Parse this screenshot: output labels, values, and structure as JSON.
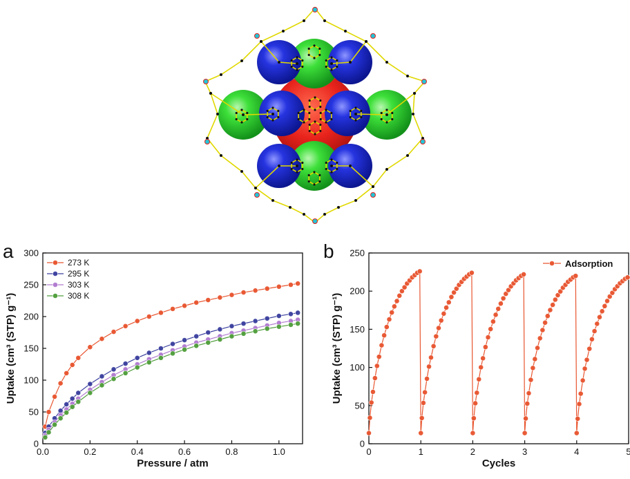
{
  "figure": {
    "panel_a_letter": "a",
    "panel_b_letter": "b",
    "structure_colors": {
      "red": "#e8231c",
      "green": "#2fd62f",
      "blue": "#1d2bd6",
      "framework": "#e0d800",
      "atom": "#111111",
      "metal": "#24c4d8"
    }
  },
  "chart_data": [
    {
      "type": "line",
      "panel": "a",
      "xlabel": "Pressure / atm",
      "ylabel": "Uptake (cm³ (STP) g⁻¹)",
      "xlim": [
        0.0,
        1.1
      ],
      "ylim": [
        0,
        300
      ],
      "xticks": [
        0.0,
        0.2,
        0.4,
        0.6,
        0.8,
        1.0
      ],
      "yticks": [
        0,
        50,
        100,
        150,
        200,
        250,
        300
      ],
      "legend_position": "top-left",
      "grid": false,
      "series": [
        {
          "name": "273 K",
          "color": "#e8542e",
          "x": [
            0.01,
            0.025,
            0.05,
            0.075,
            0.1,
            0.125,
            0.15,
            0.2,
            0.25,
            0.3,
            0.35,
            0.4,
            0.45,
            0.5,
            0.55,
            0.6,
            0.65,
            0.7,
            0.75,
            0.8,
            0.85,
            0.9,
            0.95,
            1.0,
            1.05,
            1.08
          ],
          "y": [
            27,
            50,
            74,
            95,
            111,
            124,
            135,
            152,
            165,
            176,
            185,
            193,
            200,
            206,
            212,
            217,
            222,
            226,
            230,
            234,
            238,
            241,
            244,
            247,
            250,
            252
          ]
        },
        {
          "name": "295 K",
          "color": "#3a3f9e",
          "x": [
            0.01,
            0.025,
            0.05,
            0.075,
            0.1,
            0.125,
            0.15,
            0.2,
            0.25,
            0.3,
            0.35,
            0.4,
            0.45,
            0.5,
            0.55,
            0.6,
            0.65,
            0.7,
            0.75,
            0.8,
            0.85,
            0.9,
            0.95,
            1.0,
            1.05,
            1.08
          ],
          "y": [
            17,
            27,
            40,
            52,
            62,
            71,
            80,
            94,
            106,
            117,
            126,
            135,
            143,
            150,
            157,
            163,
            169,
            175,
            180,
            185,
            189,
            193,
            197,
            201,
            204,
            206
          ]
        },
        {
          "name": "303 K",
          "color": "#b07ad0",
          "x": [
            0.01,
            0.025,
            0.05,
            0.075,
            0.1,
            0.125,
            0.15,
            0.2,
            0.25,
            0.3,
            0.35,
            0.4,
            0.45,
            0.5,
            0.55,
            0.6,
            0.65,
            0.7,
            0.75,
            0.8,
            0.85,
            0.9,
            0.95,
            1.0,
            1.05,
            1.08
          ],
          "y": [
            13,
            22,
            34,
            45,
            54,
            63,
            71,
            85,
            97,
            108,
            117,
            125,
            133,
            140,
            147,
            153,
            159,
            164,
            169,
            174,
            178,
            182,
            186,
            190,
            193,
            195
          ]
        },
        {
          "name": "308 K",
          "color": "#4f9e3a",
          "x": [
            0.01,
            0.025,
            0.05,
            0.075,
            0.1,
            0.125,
            0.15,
            0.2,
            0.25,
            0.3,
            0.35,
            0.4,
            0.45,
            0.5,
            0.55,
            0.6,
            0.65,
            0.7,
            0.75,
            0.8,
            0.85,
            0.9,
            0.95,
            1.0,
            1.05,
            1.08
          ],
          "y": [
            10,
            18,
            30,
            40,
            49,
            58,
            66,
            80,
            92,
            102,
            111,
            120,
            128,
            135,
            142,
            148,
            154,
            159,
            164,
            169,
            173,
            177,
            181,
            184,
            187,
            189
          ]
        }
      ]
    },
    {
      "type": "line",
      "panel": "b",
      "xlabel": "Cycles",
      "ylabel": "Uptake (cm³ (STP) g⁻¹)",
      "xlim": [
        0,
        5
      ],
      "ylim": [
        0,
        250
      ],
      "xticks": [
        0,
        1,
        2,
        3,
        4,
        5
      ],
      "yticks": [
        0,
        50,
        100,
        150,
        200,
        250
      ],
      "legend_position": "top-right",
      "grid": false,
      "series": [
        {
          "name": "Adsorption",
          "color": "#e8542e",
          "cycle_peaks": [
            226,
            224,
            222,
            220,
            218
          ],
          "cycle_start": 14,
          "cycle_profile_fraction": [
            0.0,
            0.02,
            0.05,
            0.08,
            0.12,
            0.16,
            0.2,
            0.25,
            0.3,
            0.35,
            0.4,
            0.45,
            0.5,
            0.55,
            0.6,
            0.65,
            0.7,
            0.75,
            0.8,
            0.85,
            0.9,
            0.95,
            1.0
          ],
          "cycle_profile_y": [
            14,
            34,
            54,
            68,
            86,
            102,
            114,
            129,
            142,
            153,
            163,
            172,
            180,
            187,
            194,
            200,
            205,
            210,
            214,
            218,
            221,
            224,
            226
          ]
        }
      ]
    }
  ]
}
